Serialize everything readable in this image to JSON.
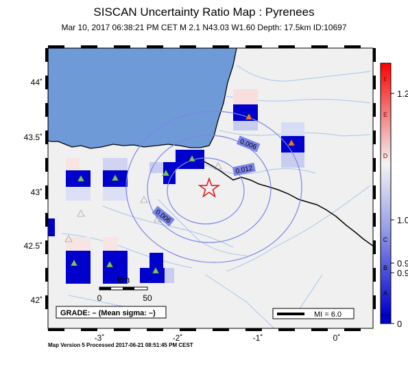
{
  "header": {
    "title": "SISCAN Uncertainty Ratio Map : Pyrenees",
    "subtitle": "Mar 10, 2017 06:38:21 PM CET   M 2.1   N43.03 W1.60   Depth: 17.5km   ID:10697"
  },
  "footer": "Map Version 5 Processed 2017-06-21 08:51:45 PM CEST",
  "map": {
    "lon_ticks": [
      "-3˚",
      "-2˚",
      "-1˚",
      "0˚"
    ],
    "lat_ticks": [
      "44˚",
      "43.5˚",
      "43˚",
      "42.5˚",
      "42˚"
    ],
    "contours": [
      "0.006",
      "0.012",
      "0.006"
    ],
    "scalebar": {
      "unit": "km",
      "ticks": [
        "0",
        "50"
      ]
    },
    "grade_box": "GRADE: – (Mean sigma: –)",
    "mi_legend": "MI = 6.0",
    "colors": {
      "sea": "#6e9bd8",
      "land": "#f0f0f0",
      "dark_blue": "#0000cc",
      "red": "#ff0000"
    }
  },
  "colorbar": {
    "letters": [
      "F",
      "E",
      "D",
      "C",
      "B",
      "A"
    ],
    "values": [
      "1.2",
      "1.0",
      "0.9",
      "0.9",
      "0"
    ]
  }
}
